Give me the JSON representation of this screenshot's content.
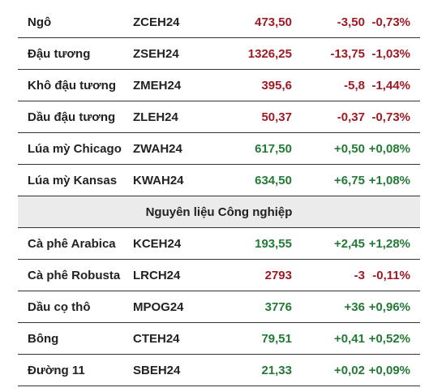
{
  "colors": {
    "negative": "#9e1b24",
    "positive": "#237a35",
    "section_background": "#ebebeb"
  },
  "rows_top": [
    {
      "name": "Ngô",
      "code": "ZCEH24",
      "price": "473,50",
      "change": "-3,50",
      "pct": "-0,73%",
      "trend": "neg"
    },
    {
      "name": "Đậu tương",
      "code": "ZSEH24",
      "price": "1326,25",
      "change": "-13,75",
      "pct": "-1,03%",
      "trend": "neg"
    },
    {
      "name": "Khô đậu tương",
      "code": "ZMEH24",
      "price": "395,6",
      "change": "-5,8",
      "pct": "-1,44%",
      "trend": "neg"
    },
    {
      "name": "Dầu đậu tương",
      "code": "ZLEH24",
      "price": "50,37",
      "change": "-0,37",
      "pct": "-0,73%",
      "trend": "neg"
    },
    {
      "name": "Lúa mỳ Chicago",
      "code": "ZWAH24",
      "price": "617,50",
      "change": "+0,50",
      "pct": "+0,08%",
      "trend": "pos"
    },
    {
      "name": "Lúa mỳ Kansas",
      "code": "KWAH24",
      "price": "634,50",
      "change": "+6,75",
      "pct": "+1,08%",
      "trend": "pos"
    }
  ],
  "section_title": "Nguyên liệu Công nghiệp",
  "rows_bottom": [
    {
      "name": "Cà phê Arabica",
      "code": "KCEH24",
      "price": "193,55",
      "change": "+2,45",
      "pct": "+1,28%",
      "trend": "pos"
    },
    {
      "name": "Cà phê Robusta",
      "code": "LRCH24",
      "price": "2793",
      "change": "-3",
      "pct": "-0,11%",
      "trend": "neg"
    },
    {
      "name": "Dầu cọ thô",
      "code": "MPOG24",
      "price": "3776",
      "change": "+36",
      "pct": "+0,96%",
      "trend": "pos"
    },
    {
      "name": "Bông",
      "code": "CTEH24",
      "price": "79,51",
      "change": "+0,41",
      "pct": "+0,52%",
      "trend": "pos"
    },
    {
      "name": "Đường 11",
      "code": "SBEH24",
      "price": "21,33",
      "change": "+0,02",
      "pct": "+0,09%",
      "trend": "pos"
    }
  ]
}
